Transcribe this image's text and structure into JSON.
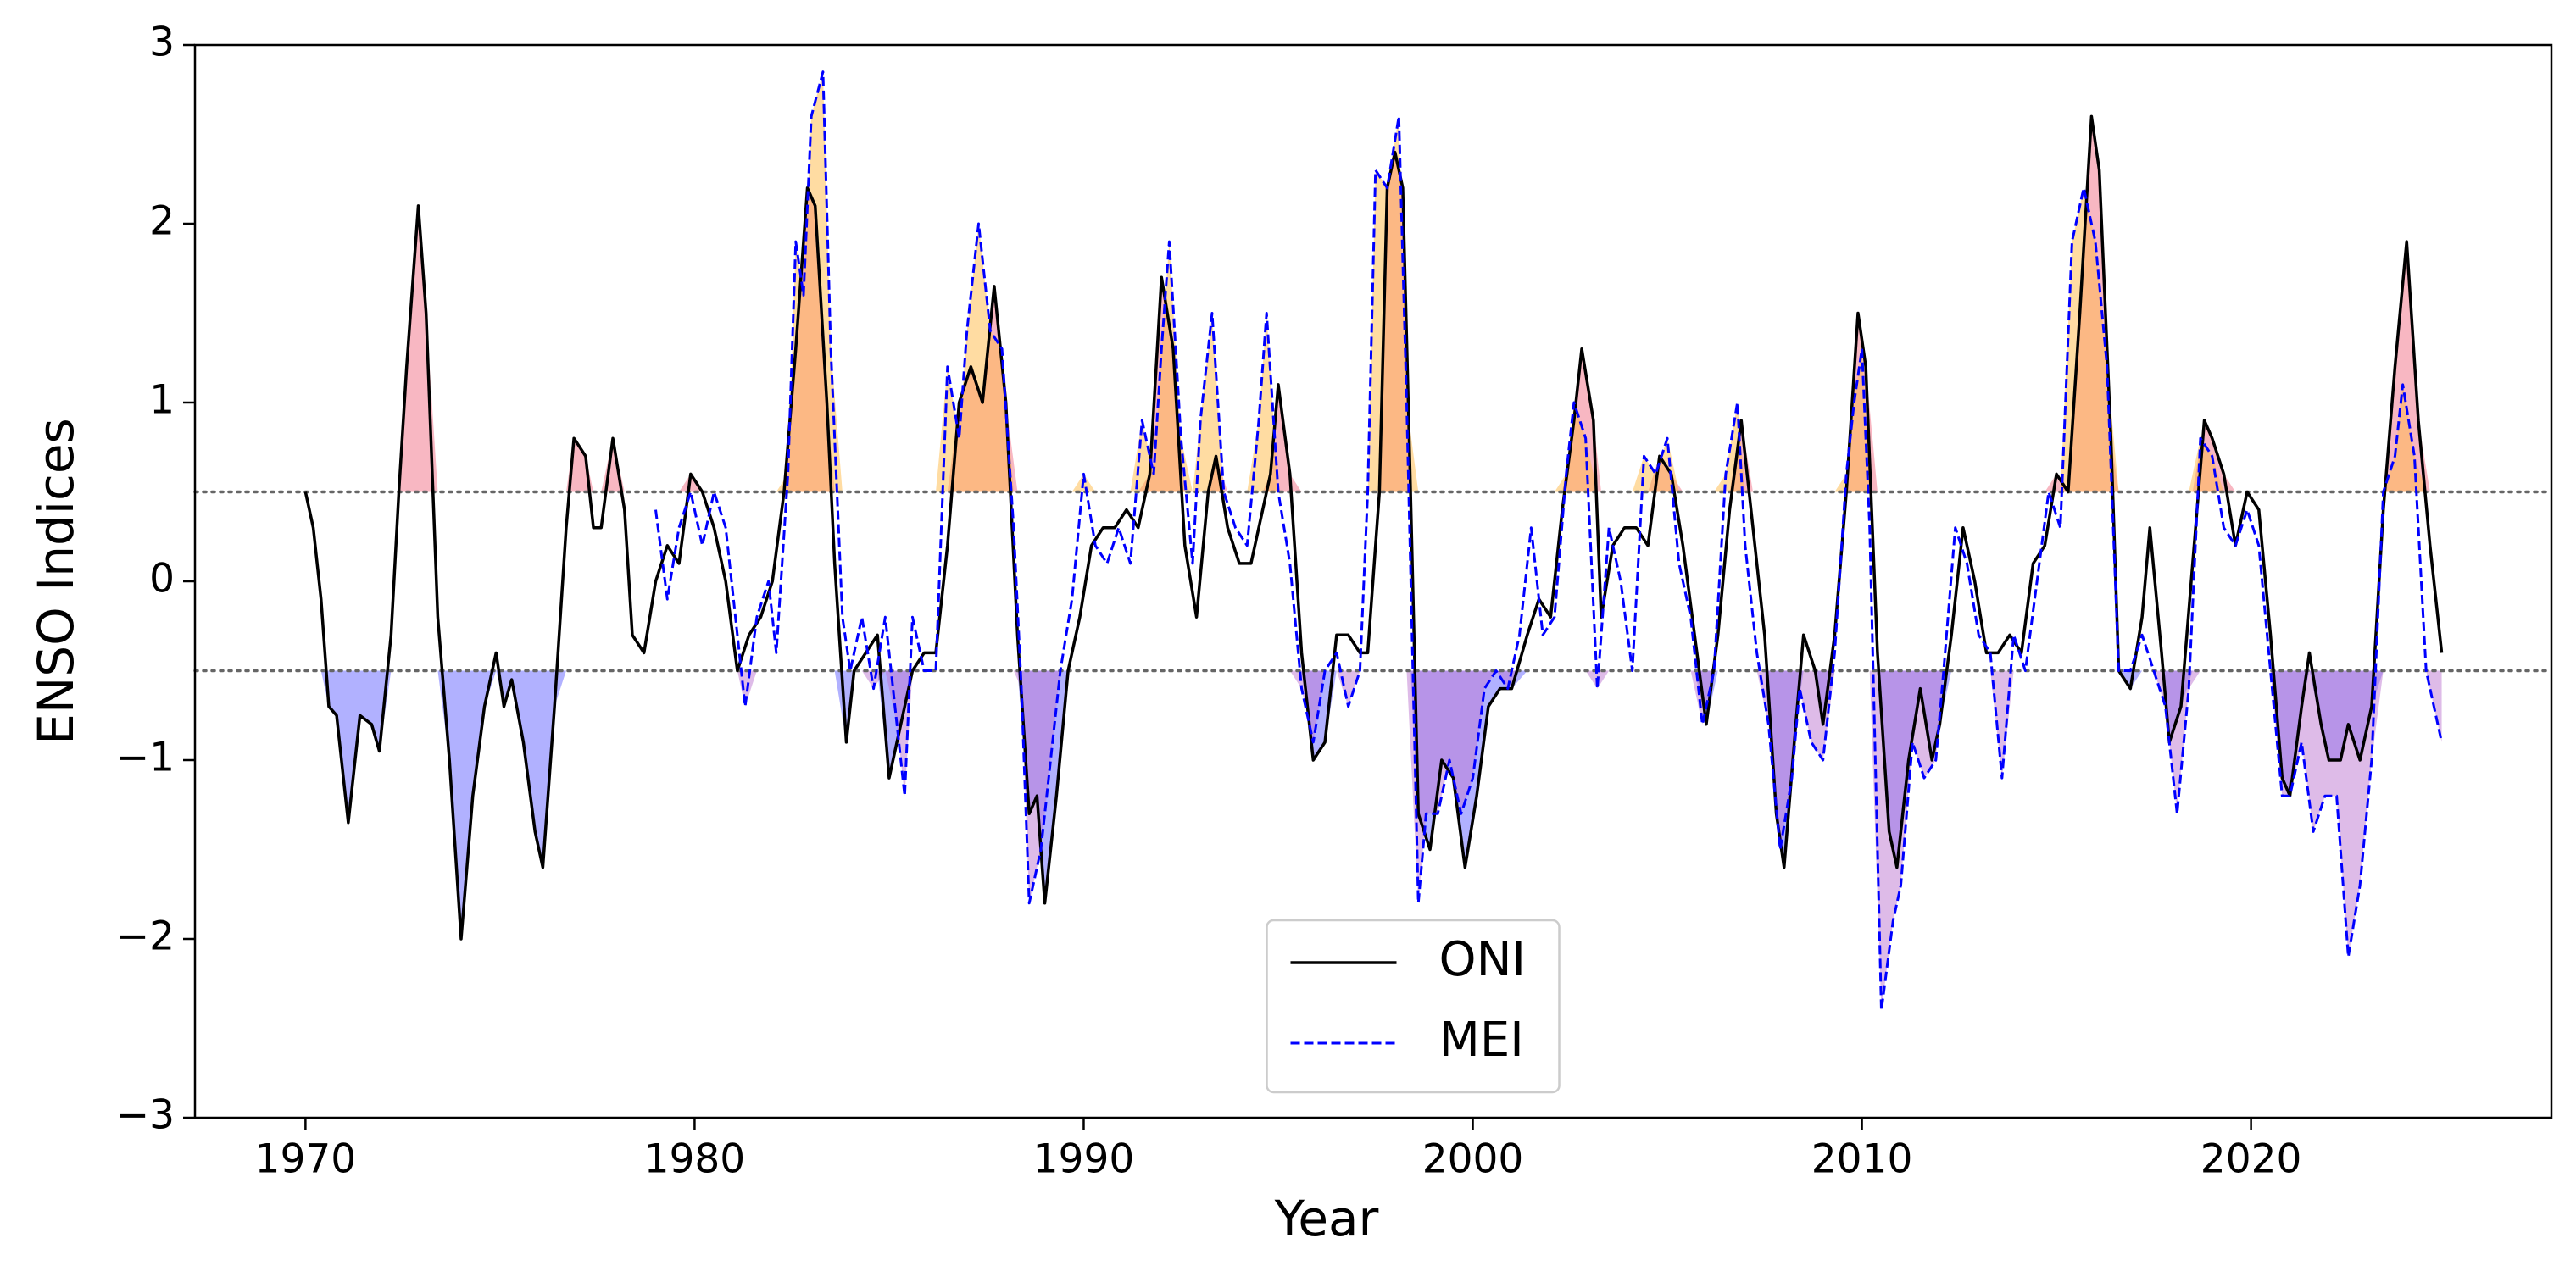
{
  "chart_data": {
    "type": "line",
    "x_label": "Year",
    "y_label": "ENSO Indices",
    "xlim": [
      1967.16,
      2027.72
    ],
    "ylim": [
      -3,
      3
    ],
    "xticks": [
      1970,
      1980,
      1990,
      2000,
      2010,
      2020
    ],
    "yticks": [
      {
        "value": -3,
        "label": "−3"
      },
      {
        "value": -2,
        "label": "−2"
      },
      {
        "value": -1,
        "label": "−1"
      },
      0,
      1,
      2,
      3
    ],
    "thresholds": [
      -0.5,
      0.5
    ],
    "legend": "lower center",
    "series": [
      {
        "name": "ONI",
        "color": "#000000",
        "linestyle": "solid",
        "fill_above": "rgba(240,95,120,0.45)",
        "fill_below": "rgba(100,100,255,0.5)",
        "x": [
          1970.0,
          1970.2,
          1970.4,
          1970.6,
          1970.8,
          1971.1,
          1971.4,
          1971.7,
          1971.9,
          1972.2,
          1972.4,
          1972.6,
          1972.9,
          1973.1,
          1973.4,
          1973.7,
          1974.0,
          1974.3,
          1974.6,
          1974.9,
          1975.1,
          1975.3,
          1975.6,
          1975.9,
          1976.1,
          1976.4,
          1976.7,
          1976.9,
          1977.2,
          1977.4,
          1977.6,
          1977.9,
          1978.2,
          1978.4,
          1978.7,
          1979.0,
          1979.3,
          1979.6,
          1979.9,
          1980.2,
          1980.5,
          1980.8,
          1981.1,
          1981.4,
          1981.7,
          1982.0,
          1982.3,
          1982.6,
          1982.9,
          1983.1,
          1983.4,
          1983.6,
          1983.9,
          1984.1,
          1984.4,
          1984.7,
          1985.0,
          1985.3,
          1985.6,
          1985.9,
          1986.2,
          1986.5,
          1986.8,
          1987.1,
          1987.4,
          1987.7,
          1988.0,
          1988.3,
          1988.6,
          1988.8,
          1989.0,
          1989.3,
          1989.6,
          1989.9,
          1990.2,
          1990.5,
          1990.8,
          1991.1,
          1991.4,
          1991.7,
          1992.0,
          1992.3,
          1992.6,
          1992.9,
          1993.2,
          1993.4,
          1993.7,
          1994.0,
          1994.3,
          1994.6,
          1994.8,
          1995.0,
          1995.3,
          1995.6,
          1995.9,
          1996.2,
          1996.5,
          1996.8,
          1997.1,
          1997.3,
          1997.6,
          1997.8,
          1998.0,
          1998.2,
          1998.4,
          1998.6,
          1998.9,
          1999.2,
          1999.5,
          1999.8,
          2000.1,
          2000.4,
          2000.7,
          2001.0,
          2001.4,
          2001.7,
          2002.0,
          2002.3,
          2002.6,
          2002.8,
          2003.1,
          2003.3,
          2003.6,
          2003.9,
          2004.2,
          2004.5,
          2004.8,
          2005.1,
          2005.4,
          2005.7,
          2006.0,
          2006.3,
          2006.6,
          2006.9,
          2007.2,
          2007.5,
          2007.8,
          2008.0,
          2008.3,
          2008.5,
          2008.8,
          2009.0,
          2009.3,
          2009.6,
          2009.9,
          2010.1,
          2010.4,
          2010.7,
          2010.9,
          2011.2,
          2011.5,
          2011.8,
          2012.0,
          2012.3,
          2012.6,
          2012.9,
          2013.2,
          2013.5,
          2013.8,
          2014.1,
          2014.4,
          2014.7,
          2015.0,
          2015.3,
          2015.6,
          2015.9,
          2016.1,
          2016.4,
          2016.6,
          2016.9,
          2017.2,
          2017.4,
          2017.7,
          2017.9,
          2018.2,
          2018.5,
          2018.8,
          2019.0,
          2019.3,
          2019.6,
          2019.9,
          2020.2,
          2020.5,
          2020.8,
          2021.0,
          2021.3,
          2021.5,
          2021.8,
          2022.0,
          2022.3,
          2022.5,
          2022.8,
          2023.1,
          2023.4,
          2023.7,
          2024.0,
          2024.3,
          2024.6,
          2024.9
        ],
        "values": [
          0.5,
          0.3,
          -0.1,
          -0.7,
          -0.75,
          -1.35,
          -0.75,
          -0.8,
          -0.95,
          -0.3,
          0.5,
          1.2,
          2.1,
          1.5,
          -0.2,
          -1.0,
          -2.0,
          -1.2,
          -0.7,
          -0.4,
          -0.7,
          -0.55,
          -0.9,
          -1.4,
          -1.6,
          -0.7,
          0.3,
          0.8,
          0.7,
          0.3,
          0.3,
          0.8,
          0.4,
          -0.3,
          -0.4,
          0.0,
          0.2,
          0.1,
          0.6,
          0.5,
          0.3,
          0.0,
          -0.5,
          -0.3,
          -0.2,
          0.0,
          0.5,
          1.3,
          2.2,
          2.1,
          1.0,
          0.1,
          -0.9,
          -0.5,
          -0.4,
          -0.3,
          -1.1,
          -0.8,
          -0.5,
          -0.4,
          -0.4,
          0.2,
          1.0,
          1.2,
          1.0,
          1.65,
          1.0,
          -0.3,
          -1.3,
          -1.2,
          -1.8,
          -1.2,
          -0.5,
          -0.2,
          0.2,
          0.3,
          0.3,
          0.4,
          0.3,
          0.6,
          1.7,
          1.3,
          0.2,
          -0.2,
          0.5,
          0.7,
          0.3,
          0.1,
          0.1,
          0.4,
          0.6,
          1.1,
          0.6,
          -0.4,
          -1.0,
          -0.9,
          -0.3,
          -0.3,
          -0.4,
          -0.4,
          0.5,
          2.2,
          2.4,
          2.2,
          0.5,
          -1.3,
          -1.5,
          -1.0,
          -1.1,
          -1.6,
          -1.2,
          -0.7,
          -0.6,
          -0.6,
          -0.3,
          -0.1,
          -0.2,
          0.4,
          0.9,
          1.3,
          0.9,
          -0.2,
          0.2,
          0.3,
          0.3,
          0.2,
          0.7,
          0.6,
          0.2,
          -0.3,
          -0.8,
          -0.3,
          0.4,
          0.9,
          0.3,
          -0.3,
          -1.3,
          -1.6,
          -0.8,
          -0.3,
          -0.5,
          -0.8,
          -0.3,
          0.5,
          1.5,
          1.2,
          -0.4,
          -1.4,
          -1.6,
          -1.0,
          -0.6,
          -1.0,
          -0.8,
          -0.3,
          0.3,
          0.0,
          -0.4,
          -0.4,
          -0.3,
          -0.4,
          0.1,
          0.2,
          0.6,
          0.5,
          1.5,
          2.6,
          2.3,
          0.8,
          -0.5,
          -0.6,
          -0.2,
          0.3,
          -0.4,
          -0.9,
          -0.7,
          0.1,
          0.9,
          0.8,
          0.6,
          0.2,
          0.5,
          0.4,
          -0.3,
          -1.1,
          -1.2,
          -0.7,
          -0.4,
          -0.8,
          -1.0,
          -1.0,
          -0.8,
          -1.0,
          -0.7,
          0.4,
          1.2,
          1.9,
          0.9,
          0.2,
          -0.4
        ]
      },
      {
        "name": "MEI",
        "color": "#0000ff",
        "linestyle": "dashed",
        "fill_above": "rgba(255,185,70,0.5)",
        "fill_below": "rgba(190,120,210,0.5)",
        "x": [
          1979.0,
          1979.3,
          1979.6,
          1979.9,
          1980.2,
          1980.5,
          1980.8,
          1981.1,
          1981.3,
          1981.6,
          1981.9,
          1982.1,
          1982.4,
          1982.6,
          1982.8,
          1983.0,
          1983.3,
          1983.5,
          1983.8,
          1984.0,
          1984.3,
          1984.6,
          1984.9,
          1985.2,
          1985.4,
          1985.6,
          1985.9,
          1986.2,
          1986.5,
          1986.8,
          1987.0,
          1987.3,
          1987.6,
          1987.9,
          1988.2,
          1988.4,
          1988.6,
          1988.9,
          1989.1,
          1989.4,
          1989.7,
          1990.0,
          1990.3,
          1990.6,
          1990.9,
          1991.2,
          1991.5,
          1991.8,
          1992.0,
          1992.2,
          1992.5,
          1992.8,
          1993.0,
          1993.3,
          1993.6,
          1993.9,
          1994.2,
          1994.5,
          1994.7,
          1995.0,
          1995.3,
          1995.6,
          1995.9,
          1996.2,
          1996.5,
          1996.8,
          1997.1,
          1997.3,
          1997.5,
          1997.8,
          1998.1,
          1998.3,
          1998.6,
          1998.8,
          1999.1,
          1999.4,
          1999.7,
          2000.0,
          2000.3,
          2000.6,
          2000.9,
          2001.2,
          2001.5,
          2001.8,
          2002.1,
          2002.4,
          2002.6,
          2002.9,
          2003.2,
          2003.5,
          2003.8,
          2004.1,
          2004.4,
          2004.7,
          2005.0,
          2005.3,
          2005.6,
          2005.9,
          2006.2,
          2006.5,
          2006.8,
          2007.0,
          2007.3,
          2007.6,
          2007.9,
          2008.2,
          2008.4,
          2008.7,
          2009.0,
          2009.3,
          2009.6,
          2009.8,
          2010.0,
          2010.2,
          2010.5,
          2010.8,
          2011.0,
          2011.3,
          2011.6,
          2011.9,
          2012.1,
          2012.4,
          2012.7,
          2013.0,
          2013.3,
          2013.6,
          2013.9,
          2014.2,
          2014.5,
          2014.8,
          2015.1,
          2015.4,
          2015.7,
          2016.0,
          2016.3,
          2016.6,
          2016.9,
          2017.2,
          2017.5,
          2017.8,
          2018.1,
          2018.4,
          2018.7,
          2019.0,
          2019.3,
          2019.6,
          2019.9,
          2020.2,
          2020.5,
          2020.8,
          2021.0,
          2021.3,
          2021.6,
          2021.9,
          2022.2,
          2022.5,
          2022.8,
          2023.1,
          2023.4,
          2023.7,
          2023.9,
          2024.2,
          2024.5,
          2024.7,
          2024.9
        ],
        "values": [
          0.4,
          -0.1,
          0.3,
          0.5,
          0.2,
          0.5,
          0.3,
          -0.3,
          -0.7,
          -0.2,
          0.0,
          -0.4,
          0.6,
          1.9,
          1.6,
          2.6,
          2.85,
          1.3,
          -0.2,
          -0.5,
          -0.2,
          -0.6,
          -0.2,
          -0.8,
          -1.2,
          -0.2,
          -0.5,
          -0.5,
          1.2,
          0.8,
          1.4,
          2.0,
          1.4,
          1.3,
          0.3,
          -0.6,
          -1.8,
          -1.5,
          -1.1,
          -0.5,
          -0.1,
          0.6,
          0.2,
          0.1,
          0.3,
          0.1,
          0.9,
          0.6,
          1.3,
          1.9,
          0.8,
          0.1,
          0.9,
          1.5,
          0.5,
          0.3,
          0.2,
          0.9,
          1.5,
          0.5,
          0.1,
          -0.6,
          -0.9,
          -0.5,
          -0.4,
          -0.7,
          -0.5,
          0.5,
          2.3,
          2.2,
          2.6,
          1.0,
          -1.8,
          -1.3,
          -1.3,
          -1.0,
          -1.3,
          -1.1,
          -0.6,
          -0.5,
          -0.6,
          -0.3,
          0.3,
          -0.3,
          -0.2,
          0.6,
          1.0,
          0.8,
          -0.6,
          0.3,
          0.0,
          -0.5,
          0.7,
          0.6,
          0.8,
          0.1,
          -0.2,
          -0.8,
          -0.5,
          0.6,
          1.0,
          0.2,
          -0.4,
          -0.8,
          -1.5,
          -1.1,
          -0.6,
          -0.9,
          -1.0,
          -0.4,
          0.6,
          1.0,
          1.3,
          0.3,
          -2.4,
          -1.9,
          -1.7,
          -0.9,
          -1.1,
          -1.0,
          -0.5,
          0.3,
          0.1,
          -0.3,
          -0.4,
          -1.1,
          -0.3,
          -0.5,
          0.0,
          0.5,
          0.3,
          1.9,
          2.2,
          1.9,
          1.2,
          -0.5,
          -0.5,
          -0.3,
          -0.5,
          -0.7,
          -1.3,
          -0.6,
          0.8,
          0.7,
          0.3,
          0.2,
          0.4,
          0.2,
          -0.5,
          -1.2,
          -1.2,
          -0.9,
          -1.4,
          -1.2,
          -1.2,
          -2.1,
          -1.7,
          -1.0,
          0.5,
          0.7,
          1.1,
          0.7,
          -0.5,
          -0.7,
          -0.9
        ]
      }
    ]
  }
}
